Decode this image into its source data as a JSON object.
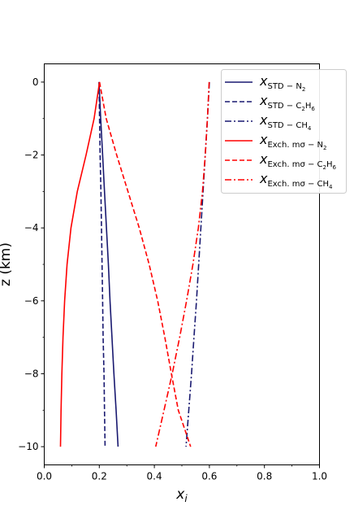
{
  "chart_data": {
    "type": "line",
    "xlabel": "x_i",
    "ylabel": "z (km)",
    "xlim": [
      0.0,
      1.0
    ],
    "ylim": [
      -10.5,
      0.5
    ],
    "xticks": [
      "0.0",
      "0.2",
      "0.4",
      "0.6",
      "0.8",
      "1.0"
    ],
    "yticks": [
      "0",
      "−2",
      "−4",
      "−6",
      "−8",
      "−10"
    ],
    "grid": false,
    "legend_position": "top-right",
    "series": [
      {
        "name": "x_{STD−N2}",
        "color": "#191970",
        "dash": "solid",
        "points": [
          [
            0.199,
            0
          ],
          [
            0.205,
            -1
          ],
          [
            0.212,
            -2
          ],
          [
            0.219,
            -3
          ],
          [
            0.226,
            -4
          ],
          [
            0.233,
            -5
          ],
          [
            0.239,
            -6
          ],
          [
            0.246,
            -7
          ],
          [
            0.253,
            -8
          ],
          [
            0.261,
            -9
          ],
          [
            0.268,
            -10
          ]
        ]
      },
      {
        "name": "x_{STD−C2H6}",
        "color": "#191970",
        "dash": "dashed",
        "points": [
          [
            0.199,
            0
          ],
          [
            0.201,
            -1
          ],
          [
            0.203,
            -2
          ],
          [
            0.206,
            -3
          ],
          [
            0.208,
            -4
          ],
          [
            0.21,
            -5
          ],
          [
            0.212,
            -6
          ],
          [
            0.214,
            -7
          ],
          [
            0.217,
            -8
          ],
          [
            0.219,
            -9
          ],
          [
            0.221,
            -10
          ]
        ]
      },
      {
        "name": "x_{STD−CH4}",
        "color": "#191970",
        "dash": "dashdot",
        "points": [
          [
            0.6,
            0
          ],
          [
            0.593,
            -1
          ],
          [
            0.585,
            -2
          ],
          [
            0.577,
            -3
          ],
          [
            0.569,
            -4
          ],
          [
            0.561,
            -5
          ],
          [
            0.553,
            -6
          ],
          [
            0.544,
            -7
          ],
          [
            0.535,
            -8
          ],
          [
            0.525,
            -9
          ],
          [
            0.515,
            -10
          ]
        ]
      },
      {
        "name": "x_{Exch.mσ−N2}",
        "color": "#ff0000",
        "dash": "solid",
        "points": [
          [
            0.201,
            0
          ],
          [
            0.181,
            -1
          ],
          [
            0.152,
            -2
          ],
          [
            0.12,
            -3
          ],
          [
            0.097,
            -4
          ],
          [
            0.083,
            -5
          ],
          [
            0.074,
            -6
          ],
          [
            0.068,
            -7
          ],
          [
            0.064,
            -8
          ],
          [
            0.061,
            -9
          ],
          [
            0.059,
            -10
          ]
        ]
      },
      {
        "name": "x_{Exch.mσ−C2H6}",
        "color": "#ff0000",
        "dash": "dashed",
        "points": [
          [
            0.201,
            0
          ],
          [
            0.225,
            -1
          ],
          [
            0.263,
            -2
          ],
          [
            0.304,
            -3
          ],
          [
            0.345,
            -4
          ],
          [
            0.381,
            -5
          ],
          [
            0.412,
            -6
          ],
          [
            0.438,
            -7
          ],
          [
            0.462,
            -8
          ],
          [
            0.487,
            -9
          ],
          [
            0.532,
            -10
          ]
        ]
      },
      {
        "name": "x_{Exch.mσ−CH4}",
        "color": "#ff0000",
        "dash": "dashdot",
        "points": [
          [
            0.599,
            0
          ],
          [
            0.593,
            -1
          ],
          [
            0.585,
            -2
          ],
          [
            0.575,
            -3
          ],
          [
            0.56,
            -4
          ],
          [
            0.54,
            -5
          ],
          [
            0.517,
            -6
          ],
          [
            0.492,
            -7
          ],
          [
            0.465,
            -8
          ],
          [
            0.435,
            -9
          ],
          [
            0.405,
            -10
          ]
        ]
      }
    ]
  },
  "legend": [
    {
      "main": "x",
      "sub": "STD − N",
      "subsub": "2",
      "tail": ""
    },
    {
      "main": "x",
      "sub": "STD − C",
      "subsub": "2",
      "tail": "H",
      "tailsub": "6"
    },
    {
      "main": "x",
      "sub": "STD − CH",
      "subsub": "4",
      "tail": ""
    },
    {
      "main": "x",
      "sub": "Exch. mσ − N",
      "subsub": "2",
      "tail": ""
    },
    {
      "main": "x",
      "sub": "Exch. mσ − C",
      "subsub": "2",
      "tail": "H",
      "tailsub": "6"
    },
    {
      "main": "x",
      "sub": "Exch. mσ − CH",
      "subsub": "4",
      "tail": ""
    }
  ]
}
